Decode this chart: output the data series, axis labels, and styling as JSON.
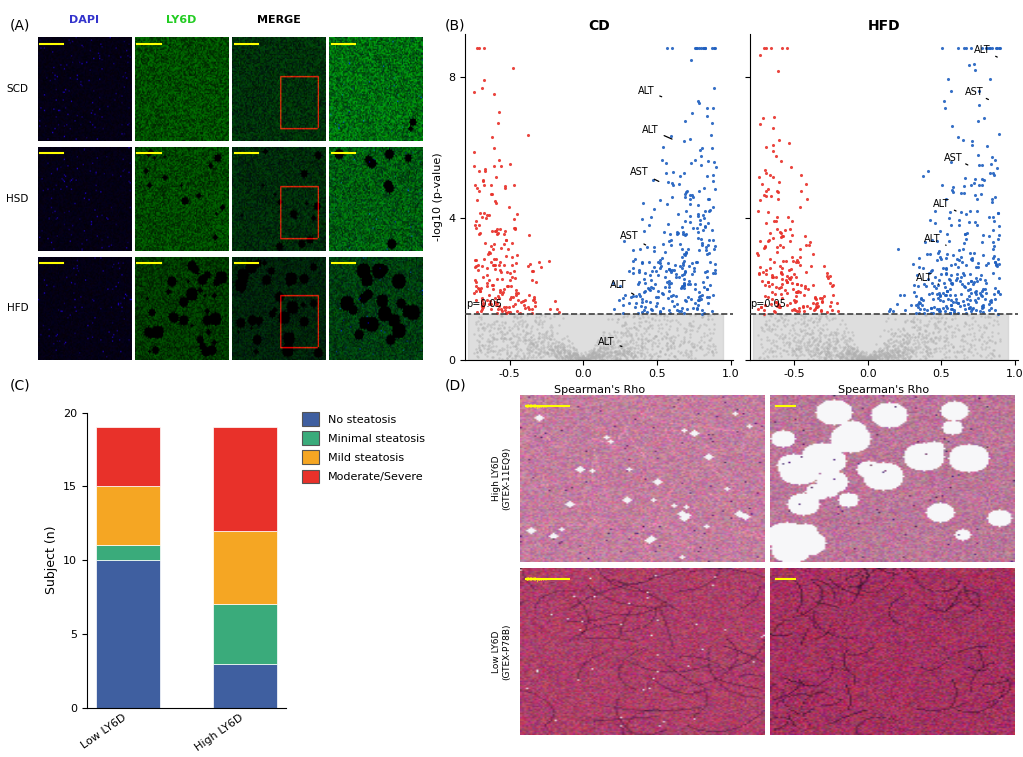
{
  "panel_labels": [
    "(A)",
    "(B)",
    "(C)",
    "(D)"
  ],
  "bar_categories": [
    "Low LY6D",
    "High LY6D"
  ],
  "bar_data": {
    "No steatosis": [
      10,
      3
    ],
    "Minimal steatosis": [
      1,
      4
    ],
    "Mild steatosis": [
      4,
      5
    ],
    "Moderate/Severe": [
      4,
      7
    ]
  },
  "bar_colors": {
    "No steatosis": "#3f5fa0",
    "Minimal steatosis": "#3aab7b",
    "Mild steatosis": "#f5a623",
    "Moderate/Severe": "#e8312a"
  },
  "bar_ylabel": "Subject (n)",
  "bar_ylim": [
    0,
    20
  ],
  "bar_yticks": [
    0,
    5,
    10,
    15,
    20
  ],
  "cd_title": "CD",
  "hfd_title": "HFD",
  "volcano_ylabel": "-log10 (p-value)",
  "volcano_xlabel": "Spearman's Rho",
  "volcano_xlim": [
    -0.8,
    1.0
  ],
  "volcano_ylim": [
    0,
    9
  ],
  "p_threshold_value": 1.301,
  "dapi_label": "DAPI",
  "ly6d_label": "LY6D",
  "merge_label": "MERGE",
  "row_labels": [
    "SCD",
    "HSD",
    "HFD"
  ],
  "background_color": "#ffffff",
  "d_row_labels": [
    "High LY6D\n(GTEX-11EQ9)",
    "Low LY6D\n(GTEX-P78B)"
  ]
}
